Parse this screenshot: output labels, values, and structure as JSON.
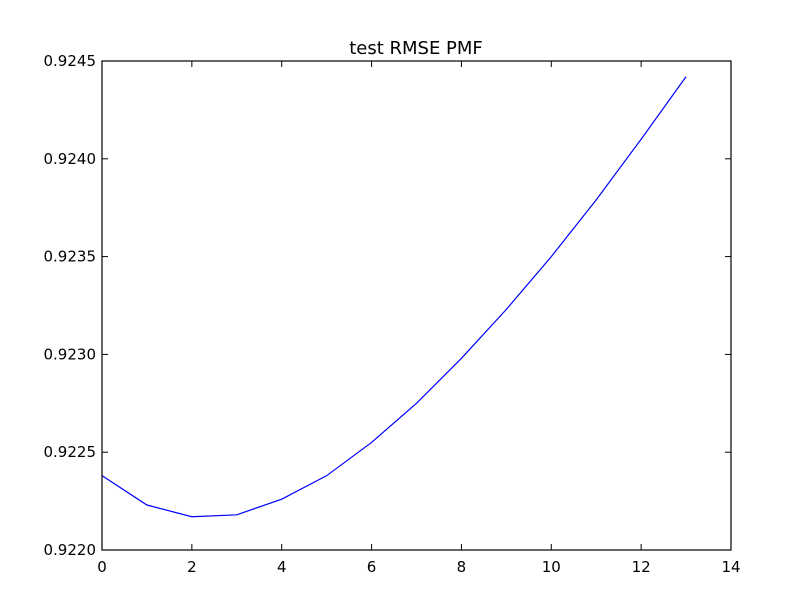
{
  "chart_data": {
    "type": "line",
    "title": "test RMSE PMF",
    "xlabel": "",
    "ylabel": "",
    "xlim": [
      0,
      14
    ],
    "ylim": [
      0.922,
      0.9245
    ],
    "x_ticks": [
      0,
      2,
      4,
      6,
      8,
      10,
      12,
      14
    ],
    "y_ticks": [
      0.922,
      0.9225,
      0.923,
      0.9235,
      0.924,
      0.9245
    ],
    "x_tick_labels": [
      "0",
      "2",
      "4",
      "6",
      "8",
      "10",
      "12",
      "14"
    ],
    "y_tick_labels": [
      "0.9220",
      "0.9225",
      "0.9230",
      "0.9235",
      "0.9240",
      "0.9245"
    ],
    "grid": false,
    "legend": "none",
    "series": [
      {
        "color": "#0000ff",
        "x": [
          0,
          1,
          2,
          3,
          4,
          5,
          6,
          7,
          8,
          9,
          10,
          11,
          12,
          13
        ],
        "y": [
          0.92238,
          0.92223,
          0.92217,
          0.92218,
          0.92226,
          0.92238,
          0.92255,
          0.92275,
          0.92298,
          0.92323,
          0.9235,
          0.92379,
          0.9241,
          0.92442
        ]
      }
    ]
  }
}
